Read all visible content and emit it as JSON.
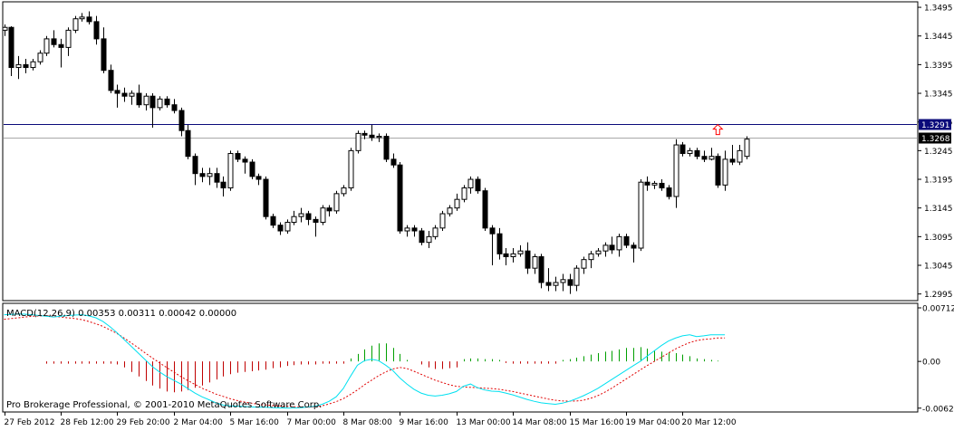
{
  "chart_data": [
    {
      "type": "candlestick",
      "title": "",
      "y_ticks": [
        1.2995,
        1.3045,
        1.3095,
        1.3145,
        1.3195,
        1.3245,
        1.3295,
        1.3345,
        1.3395,
        1.3445,
        1.3495
      ],
      "y_tick_labels": [
        "1.2995",
        "1.3045",
        "1.3095",
        "1.3145",
        "1.3195",
        "1.3245",
        "1.3295",
        "1.3345",
        "1.3395",
        "1.3445",
        "1.3495"
      ],
      "ylim": [
        1.2985,
        1.3503
      ],
      "x_labels": [
        "27 Feb 2012",
        "28 Feb 12:00",
        "29 Feb 20:00",
        "2 Mar 04:00",
        "5 Mar 16:00",
        "7 Mar 00:00",
        "8 Mar 08:00",
        "9 Mar 16:00",
        "13 Mar 00:00",
        "14 Mar 08:00",
        "15 Mar 16:00",
        "19 Mar 04:00",
        "20 Mar 12:00"
      ],
      "x_label_index": [
        0,
        8,
        16,
        24,
        32,
        40,
        48,
        56,
        64,
        72,
        80,
        88,
        96
      ],
      "level_line": {
        "value": 1.3291,
        "label": "1.3291",
        "color": "#0a0a7a"
      },
      "bid_line": {
        "value": 1.3268,
        "label": "1.3268",
        "color": "#a8a8a8"
      },
      "arrow_marker": {
        "index": 101,
        "price": 1.3281,
        "color": "#ff0000",
        "direction": "up"
      },
      "candles": [
        {
          "o": 1.3455,
          "h": 1.3465,
          "l": 1.3445,
          "c": 1.346
        },
        {
          "o": 1.346,
          "h": 1.3462,
          "l": 1.3375,
          "c": 1.339
        },
        {
          "o": 1.339,
          "h": 1.341,
          "l": 1.337,
          "c": 1.3395
        },
        {
          "o": 1.3395,
          "h": 1.3405,
          "l": 1.338,
          "c": 1.339
        },
        {
          "o": 1.339,
          "h": 1.3405,
          "l": 1.3385,
          "c": 1.34
        },
        {
          "o": 1.34,
          "h": 1.342,
          "l": 1.3395,
          "c": 1.3415
        },
        {
          "o": 1.3415,
          "h": 1.3445,
          "l": 1.341,
          "c": 1.344
        },
        {
          "o": 1.344,
          "h": 1.3455,
          "l": 1.3425,
          "c": 1.343
        },
        {
          "o": 1.343,
          "h": 1.344,
          "l": 1.339,
          "c": 1.3425
        },
        {
          "o": 1.3425,
          "h": 1.346,
          "l": 1.341,
          "c": 1.3455
        },
        {
          "o": 1.3455,
          "h": 1.348,
          "l": 1.345,
          "c": 1.3475
        },
        {
          "o": 1.3475,
          "h": 1.3485,
          "l": 1.347,
          "c": 1.3478
        },
        {
          "o": 1.3478,
          "h": 1.3488,
          "l": 1.3465,
          "c": 1.347
        },
        {
          "o": 1.347,
          "h": 1.348,
          "l": 1.343,
          "c": 1.344
        },
        {
          "o": 1.344,
          "h": 1.346,
          "l": 1.338,
          "c": 1.3385
        },
        {
          "o": 1.3385,
          "h": 1.3395,
          "l": 1.3345,
          "c": 1.335
        },
        {
          "o": 1.335,
          "h": 1.336,
          "l": 1.332,
          "c": 1.3345
        },
        {
          "o": 1.3345,
          "h": 1.3355,
          "l": 1.333,
          "c": 1.334
        },
        {
          "o": 1.334,
          "h": 1.335,
          "l": 1.3325,
          "c": 1.3345
        },
        {
          "o": 1.3345,
          "h": 1.336,
          "l": 1.332,
          "c": 1.3325
        },
        {
          "o": 1.3325,
          "h": 1.3345,
          "l": 1.3315,
          "c": 1.334
        },
        {
          "o": 1.334,
          "h": 1.3345,
          "l": 1.3285,
          "c": 1.332
        },
        {
          "o": 1.332,
          "h": 1.334,
          "l": 1.3315,
          "c": 1.3335
        },
        {
          "o": 1.3335,
          "h": 1.334,
          "l": 1.332,
          "c": 1.3325
        },
        {
          "o": 1.3325,
          "h": 1.3335,
          "l": 1.331,
          "c": 1.3315
        },
        {
          "o": 1.3315,
          "h": 1.332,
          "l": 1.327,
          "c": 1.328
        },
        {
          "o": 1.328,
          "h": 1.329,
          "l": 1.323,
          "c": 1.3235
        },
        {
          "o": 1.3235,
          "h": 1.324,
          "l": 1.3185,
          "c": 1.3205
        },
        {
          "o": 1.3205,
          "h": 1.3215,
          "l": 1.319,
          "c": 1.32
        },
        {
          "o": 1.32,
          "h": 1.3215,
          "l": 1.3185,
          "c": 1.3205
        },
        {
          "o": 1.3205,
          "h": 1.3215,
          "l": 1.318,
          "c": 1.319
        },
        {
          "o": 1.319,
          "h": 1.32,
          "l": 1.3165,
          "c": 1.318
        },
        {
          "o": 1.318,
          "h": 1.3245,
          "l": 1.3175,
          "c": 1.324
        },
        {
          "o": 1.324,
          "h": 1.3245,
          "l": 1.3225,
          "c": 1.323
        },
        {
          "o": 1.323,
          "h": 1.3235,
          "l": 1.3205,
          "c": 1.3225
        },
        {
          "o": 1.3225,
          "h": 1.323,
          "l": 1.3195,
          "c": 1.32
        },
        {
          "o": 1.32,
          "h": 1.3205,
          "l": 1.3185,
          "c": 1.3195
        },
        {
          "o": 1.3195,
          "h": 1.32,
          "l": 1.3125,
          "c": 1.313
        },
        {
          "o": 1.313,
          "h": 1.3135,
          "l": 1.311,
          "c": 1.3115
        },
        {
          "o": 1.3115,
          "h": 1.312,
          "l": 1.3098,
          "c": 1.3105
        },
        {
          "o": 1.3105,
          "h": 1.3125,
          "l": 1.31,
          "c": 1.312
        },
        {
          "o": 1.312,
          "h": 1.314,
          "l": 1.3115,
          "c": 1.313
        },
        {
          "o": 1.313,
          "h": 1.3145,
          "l": 1.312,
          "c": 1.3135
        },
        {
          "o": 1.3135,
          "h": 1.314,
          "l": 1.3115,
          "c": 1.3125
        },
        {
          "o": 1.3125,
          "h": 1.313,
          "l": 1.3095,
          "c": 1.312
        },
        {
          "o": 1.312,
          "h": 1.315,
          "l": 1.3115,
          "c": 1.3145
        },
        {
          "o": 1.3145,
          "h": 1.315,
          "l": 1.313,
          "c": 1.314
        },
        {
          "o": 1.314,
          "h": 1.3175,
          "l": 1.3135,
          "c": 1.317
        },
        {
          "o": 1.317,
          "h": 1.3185,
          "l": 1.3165,
          "c": 1.318
        },
        {
          "o": 1.318,
          "h": 1.325,
          "l": 1.3175,
          "c": 1.3245
        },
        {
          "o": 1.3245,
          "h": 1.328,
          "l": 1.324,
          "c": 1.3275
        },
        {
          "o": 1.3275,
          "h": 1.328,
          "l": 1.3265,
          "c": 1.3272
        },
        {
          "o": 1.3272,
          "h": 1.329,
          "l": 1.3262,
          "c": 1.3268
        },
        {
          "o": 1.3268,
          "h": 1.3275,
          "l": 1.326,
          "c": 1.327
        },
        {
          "o": 1.327,
          "h": 1.3275,
          "l": 1.3225,
          "c": 1.323
        },
        {
          "o": 1.323,
          "h": 1.324,
          "l": 1.3215,
          "c": 1.322
        },
        {
          "o": 1.322,
          "h": 1.3225,
          "l": 1.31,
          "c": 1.3105
        },
        {
          "o": 1.3105,
          "h": 1.3115,
          "l": 1.3095,
          "c": 1.311
        },
        {
          "o": 1.311,
          "h": 1.3115,
          "l": 1.3095,
          "c": 1.3105
        },
        {
          "o": 1.3105,
          "h": 1.311,
          "l": 1.308,
          "c": 1.3085
        },
        {
          "o": 1.3085,
          "h": 1.3105,
          "l": 1.3075,
          "c": 1.3095
        },
        {
          "o": 1.3095,
          "h": 1.3115,
          "l": 1.309,
          "c": 1.311
        },
        {
          "o": 1.311,
          "h": 1.314,
          "l": 1.3105,
          "c": 1.3135
        },
        {
          "o": 1.3135,
          "h": 1.315,
          "l": 1.313,
          "c": 1.3145
        },
        {
          "o": 1.3145,
          "h": 1.317,
          "l": 1.314,
          "c": 1.316
        },
        {
          "o": 1.316,
          "h": 1.3185,
          "l": 1.3155,
          "c": 1.318
        },
        {
          "o": 1.318,
          "h": 1.32,
          "l": 1.317,
          "c": 1.3195
        },
        {
          "o": 1.3195,
          "h": 1.32,
          "l": 1.317,
          "c": 1.3175
        },
        {
          "o": 1.3175,
          "h": 1.318,
          "l": 1.3105,
          "c": 1.311
        },
        {
          "o": 1.311,
          "h": 1.3115,
          "l": 1.3045,
          "c": 1.31
        },
        {
          "o": 1.31,
          "h": 1.311,
          "l": 1.3055,
          "c": 1.3065
        },
        {
          "o": 1.3065,
          "h": 1.3075,
          "l": 1.3045,
          "c": 1.306
        },
        {
          "o": 1.306,
          "h": 1.3075,
          "l": 1.305,
          "c": 1.3065
        },
        {
          "o": 1.3065,
          "h": 1.308,
          "l": 1.306,
          "c": 1.307
        },
        {
          "o": 1.307,
          "h": 1.3085,
          "l": 1.303,
          "c": 1.304
        },
        {
          "o": 1.304,
          "h": 1.3065,
          "l": 1.303,
          "c": 1.306
        },
        {
          "o": 1.306,
          "h": 1.3065,
          "l": 1.3005,
          "c": 1.3015
        },
        {
          "o": 1.3015,
          "h": 1.304,
          "l": 1.3,
          "c": 1.301
        },
        {
          "o": 1.301,
          "h": 1.3025,
          "l": 1.3,
          "c": 1.3015
        },
        {
          "o": 1.3015,
          "h": 1.303,
          "l": 1.3,
          "c": 1.302
        },
        {
          "o": 1.302,
          "h": 1.303,
          "l": 1.2995,
          "c": 1.301
        },
        {
          "o": 1.301,
          "h": 1.3045,
          "l": 1.3,
          "c": 1.304
        },
        {
          "o": 1.304,
          "h": 1.306,
          "l": 1.303,
          "c": 1.3055
        },
        {
          "o": 1.3055,
          "h": 1.307,
          "l": 1.304,
          "c": 1.3065
        },
        {
          "o": 1.3065,
          "h": 1.3075,
          "l": 1.306,
          "c": 1.307
        },
        {
          "o": 1.307,
          "h": 1.3085,
          "l": 1.306,
          "c": 1.308
        },
        {
          "o": 1.308,
          "h": 1.3095,
          "l": 1.3065,
          "c": 1.3072
        },
        {
          "o": 1.3072,
          "h": 1.31,
          "l": 1.306,
          "c": 1.3095
        },
        {
          "o": 1.3095,
          "h": 1.31,
          "l": 1.3075,
          "c": 1.308
        },
        {
          "o": 1.308,
          "h": 1.3085,
          "l": 1.305,
          "c": 1.3075
        },
        {
          "o": 1.3075,
          "h": 1.3195,
          "l": 1.307,
          "c": 1.319
        },
        {
          "o": 1.319,
          "h": 1.32,
          "l": 1.3175,
          "c": 1.3185
        },
        {
          "o": 1.3185,
          "h": 1.3192,
          "l": 1.3178,
          "c": 1.3188
        },
        {
          "o": 1.3188,
          "h": 1.3195,
          "l": 1.3175,
          "c": 1.318
        },
        {
          "o": 1.318,
          "h": 1.3185,
          "l": 1.316,
          "c": 1.3165
        },
        {
          "o": 1.3165,
          "h": 1.3265,
          "l": 1.3145,
          "c": 1.3255
        },
        {
          "o": 1.3255,
          "h": 1.326,
          "l": 1.3235,
          "c": 1.324
        },
        {
          "o": 1.324,
          "h": 1.325,
          "l": 1.3235,
          "c": 1.3245
        },
        {
          "o": 1.3245,
          "h": 1.325,
          "l": 1.323,
          "c": 1.3235
        },
        {
          "o": 1.3235,
          "h": 1.3245,
          "l": 1.3225,
          "c": 1.323
        },
        {
          "o": 1.323,
          "h": 1.325,
          "l": 1.3228,
          "c": 1.3235
        },
        {
          "o": 1.3235,
          "h": 1.324,
          "l": 1.318,
          "c": 1.3185
        },
        {
          "o": 1.3185,
          "h": 1.3245,
          "l": 1.3175,
          "c": 1.323
        },
        {
          "o": 1.323,
          "h": 1.3255,
          "l": 1.322,
          "c": 1.3225
        },
        {
          "o": 1.3225,
          "h": 1.3255,
          "l": 1.322,
          "c": 1.3245
        },
        {
          "o": 1.3235,
          "h": 1.327,
          "l": 1.323,
          "c": 1.3265
        }
      ]
    },
    {
      "type": "macd",
      "label": "MACD(12,26,9) 0.00353 0.00311 0.00042 0.00000",
      "y_ticks": [
        0.00712,
        0.0,
        -0.00621
      ],
      "y_tick_labels": [
        "0.00712",
        "0.00",
        "-0.00621"
      ],
      "ylim": [
        -0.0066,
        0.0076
      ],
      "macd_color": "#00e0f0",
      "signal_color": "#e00000",
      "hist_color_pos": "#00a000",
      "hist_color_neg": "#c00000",
      "macd": [
        0.0062,
        0.00625,
        0.0063,
        0.00628,
        0.0062,
        0.0061,
        0.006,
        0.0059,
        0.006,
        0.0061,
        0.00615,
        0.0062,
        0.00605,
        0.0058,
        0.0053,
        0.0046,
        0.0038,
        0.0029,
        0.002,
        0.0011,
        0.0002,
        -0.0007,
        -0.0014,
        -0.002,
        -0.0025,
        -0.003,
        -0.0036,
        -0.0042,
        -0.0047,
        -0.0051,
        -0.0055,
        -0.0058,
        -0.0059,
        -0.00595,
        -0.006,
        -0.00605,
        -0.00608,
        -0.0061,
        -0.00615,
        -0.00618,
        -0.0062,
        -0.00619,
        -0.00614,
        -0.00606,
        -0.00595,
        -0.0057,
        -0.0053,
        -0.0047,
        -0.0036,
        -0.002,
        -0.0005,
        0.0001,
        0.0003,
        0.0001,
        -0.0005,
        -0.0012,
        -0.0022,
        -0.003,
        -0.0037,
        -0.0042,
        -0.0045,
        -0.0046,
        -0.0045,
        -0.0043,
        -0.004,
        -0.0033,
        -0.003,
        -0.0035,
        -0.0038,
        -0.00395,
        -0.004,
        -0.0042,
        -0.00445,
        -0.00475,
        -0.00505,
        -0.0053,
        -0.0055,
        -0.0056,
        -0.0057,
        -0.00555,
        -0.0053,
        -0.00495,
        -0.00455,
        -0.0041,
        -0.0036,
        -0.003,
        -0.0024,
        -0.0018,
        -0.0012,
        -0.0006,
        0.0,
        0.0007,
        0.0014,
        0.0021,
        0.0027,
        0.0031,
        0.0034,
        0.00355,
        0.0033,
        0.0034,
        0.00353,
        0.00355,
        0.00353
      ],
      "signal": [
        0.0056,
        0.0057,
        0.0058,
        0.0059,
        0.006,
        0.00605,
        0.00605,
        0.006,
        0.0059,
        0.0058,
        0.0057,
        0.00555,
        0.0053,
        0.005,
        0.00465,
        0.0042,
        0.0037,
        0.0031,
        0.00245,
        0.0018,
        0.0011,
        0.00045,
        -0.0002,
        -0.0008,
        -0.0014,
        -0.002,
        -0.00255,
        -0.00305,
        -0.00355,
        -0.00395,
        -0.00435,
        -0.00465,
        -0.00495,
        -0.0052,
        -0.0054,
        -0.00555,
        -0.00568,
        -0.00578,
        -0.00585,
        -0.00592,
        -0.00598,
        -0.00604,
        -0.00608,
        -0.0061,
        -0.00604,
        -0.0059,
        -0.00565,
        -0.00535,
        -0.00495,
        -0.0044,
        -0.0038,
        -0.0031,
        -0.0025,
        -0.0019,
        -0.0014,
        -0.001,
        -0.0008,
        -0.00095,
        -0.0013,
        -0.0017,
        -0.0021,
        -0.0025,
        -0.0028,
        -0.0031,
        -0.0033,
        -0.0034,
        -0.00345,
        -0.0035,
        -0.00355,
        -0.0036,
        -0.0037,
        -0.00385,
        -0.004,
        -0.0042,
        -0.0044,
        -0.0046,
        -0.0048,
        -0.005,
        -0.00515,
        -0.00525,
        -0.00528,
        -0.00526,
        -0.00515,
        -0.0049,
        -0.00455,
        -0.0041,
        -0.00355,
        -0.00295,
        -0.00235,
        -0.00175,
        -0.00115,
        -0.00055,
        0.0,
        0.00055,
        0.0011,
        0.00165,
        0.0021,
        0.0025,
        0.00278,
        0.00292,
        0.003,
        0.00311,
        0.00311
      ],
      "histogram": [
        0.0,
        0.0,
        0.0,
        0.0,
        0.0,
        0.0,
        -0.0003,
        -0.0003,
        -0.0003,
        -0.0003,
        -0.0003,
        -0.0003,
        -0.0003,
        -0.0003,
        -0.0003,
        -0.0003,
        -0.0004,
        -0.0008,
        -0.0014,
        -0.002,
        -0.0026,
        -0.0032,
        -0.0036,
        -0.004,
        -0.0041,
        -0.004,
        -0.0038,
        -0.0035,
        -0.0032,
        -0.0028,
        -0.0024,
        -0.002,
        -0.0017,
        -0.0015,
        -0.0014,
        -0.0013,
        -0.0012,
        -0.0011,
        -0.0009,
        -0.0008,
        -0.0006,
        -0.0005,
        -0.0004,
        -0.0004,
        -0.0004,
        -0.0003,
        -0.0003,
        -0.0003,
        -0.0003,
        0.0004,
        0.001,
        0.0016,
        0.0021,
        0.0024,
        0.0024,
        0.0018,
        0.001,
        0.0002,
        0.0,
        -0.0004,
        -0.0008,
        -0.001,
        -0.001,
        -0.0009,
        -0.0008,
        0.0003,
        0.0004,
        0.0004,
        0.0003,
        0.0003,
        0.0002,
        -0.0002,
        -0.0003,
        -0.0003,
        -0.0003,
        -0.0003,
        -0.0003,
        -0.0003,
        -0.0003,
        0.0002,
        0.0003,
        0.0005,
        0.0007,
        0.0009,
        0.0011,
        0.0013,
        0.0014,
        0.0016,
        0.0018,
        0.0018,
        0.0019,
        0.0017,
        0.0014,
        0.0013,
        0.0012,
        0.0011,
        0.0009,
        0.0007,
        0.0004,
        0.0003,
        0.0002,
        0.0001,
        0.0
      ]
    }
  ],
  "copyright": "Pro Brokerage Professional, © 2001-2010 MetaQuotes Software Corp.",
  "colors": {
    "border": "#000000",
    "bull_body": "#ffffff",
    "bear_body": "#000000",
    "wick": "#000000",
    "axis_text": "#000000"
  }
}
